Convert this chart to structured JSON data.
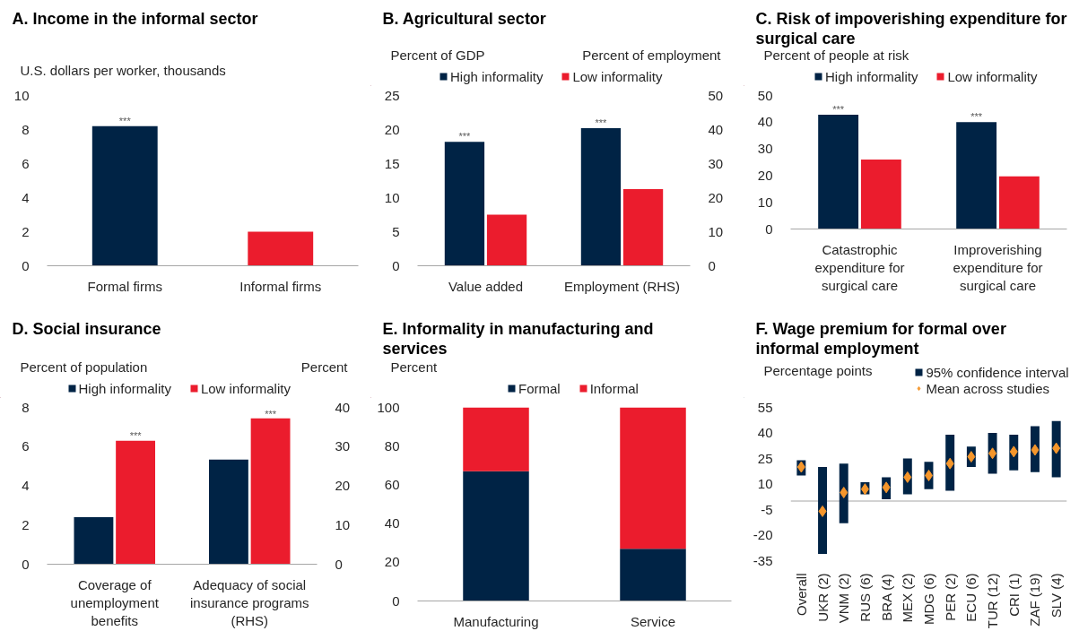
{
  "chart_data": [
    {
      "type": "bar",
      "title": "A. Income in the informal sector",
      "ylabel": "U.S. dollars per worker, thousands",
      "categories": [
        "Formal firms",
        "Informal firms"
      ],
      "values": [
        8.2,
        2.0
      ],
      "colors": [
        "#002345",
        "#eb1c2d"
      ],
      "ylim": [
        0,
        10
      ],
      "yticks": [
        0,
        2,
        4,
        6,
        8,
        10
      ],
      "annotations": [
        {
          "text": "***",
          "x": "Formal firms",
          "y": 8.2
        }
      ]
    },
    {
      "type": "bar",
      "title": "B. Agricultural sector",
      "ylabel": "Percent of GDP",
      "y2label": "Percent of employment",
      "categories": [
        "Value added",
        "Employment (RHS)"
      ],
      "series": [
        {
          "name": "High informality",
          "color": "#002345",
          "values": [
            18.2,
            null
          ]
        },
        {
          "name": "Low informality",
          "color": "#eb1c2d",
          "values": [
            7.5,
            null
          ]
        },
        {
          "color": "#002345",
          "values": [
            null,
            40.4
          ],
          "axis": "y2"
        },
        {
          "color": "#eb1c2d",
          "values": [
            null,
            22.5
          ],
          "axis": "y2"
        }
      ],
      "ylim": [
        0,
        25
      ],
      "yticks": [
        0,
        5,
        10,
        15,
        20,
        25
      ],
      "y2lim": [
        0,
        50
      ],
      "y2ticks": [
        0,
        10,
        20,
        30,
        40,
        50
      ],
      "legend": "top",
      "annotations": [
        {
          "text": "***",
          "x": "Value added",
          "y": 18.2
        },
        {
          "text": "***",
          "x": "Employment (RHS)",
          "y": 20.2
        }
      ]
    },
    {
      "type": "bar",
      "title": "C. Risk of impoverishing expenditure for surgical care",
      "ylabel": "Percent of people at risk",
      "categories": [
        "Catastrophic expenditure for surgical care",
        "Improverishing expenditure for surgical care"
      ],
      "series": [
        {
          "name": "High informality",
          "color": "#002345",
          "values": [
            42.8,
            40.0
          ]
        },
        {
          "name": "Low informality",
          "color": "#eb1c2d",
          "values": [
            26.0,
            19.7
          ]
        }
      ],
      "ylim": [
        0,
        50
      ],
      "yticks": [
        0,
        10,
        20,
        30,
        40,
        50
      ],
      "legend": "top",
      "annotations": [
        {
          "text": "***",
          "x": "Catastrophic expenditure for surgical care",
          "y": 42.8
        },
        {
          "text": "***",
          "x": "Improverishing expenditure for surgical care",
          "y": 40.0
        }
      ]
    },
    {
      "type": "bar",
      "title": "D. Social insurance",
      "ylabel": "Percent of population",
      "y2label": "Percent",
      "categories": [
        "Coverage of unemployment benefits",
        "Adequacy of social insurance programs (RHS)"
      ],
      "series": [
        {
          "name": "High informality",
          "color": "#002345",
          "values": [
            2.4,
            null
          ]
        },
        {
          "name": "Low informality",
          "color": "#eb1c2d",
          "values": [
            6.3,
            null
          ]
        },
        {
          "color": "#002345",
          "values": [
            null,
            26.7
          ],
          "axis": "y2"
        },
        {
          "color": "#eb1c2d",
          "values": [
            null,
            37.2
          ],
          "axis": "y2"
        }
      ],
      "ylim": [
        0,
        8
      ],
      "yticks": [
        0,
        2,
        4,
        6,
        8
      ],
      "y2lim": [
        0,
        40
      ],
      "y2ticks": [
        0,
        10,
        20,
        30,
        40
      ],
      "legend": "top",
      "annotations": [
        {
          "text": "***",
          "x": "Coverage of unemployment benefits",
          "y": 6.3
        },
        {
          "text": "***",
          "x": "Adequacy of social insurance programs (RHS)",
          "y": 7.4
        }
      ]
    },
    {
      "type": "bar",
      "stacked": true,
      "title": "E. Informality in manufacturing and services",
      "ylabel": "Percent",
      "categories": [
        "Manufacturing",
        "Service"
      ],
      "series": [
        {
          "name": "Formal",
          "color": "#002345",
          "values": [
            67,
            27
          ]
        },
        {
          "name": "Informal",
          "color": "#eb1c2d",
          "values": [
            33,
            73
          ]
        }
      ],
      "ylim": [
        0,
        100
      ],
      "yticks": [
        0,
        20,
        40,
        60,
        80,
        100
      ],
      "legend": "top"
    },
    {
      "type": "bar",
      "title": "F. Wage premium for formal over informal employment",
      "ylabel": "Percentage points",
      "categories": [
        "Overall",
        "UKR (2)",
        "VNM (2)",
        "RUS (6)",
        "BRA (4)",
        "MEX (2)",
        "MDG (6)",
        "PER (2)",
        "ECU (6)",
        "TUR (12)",
        "CRI (1)",
        "ZAF (19)",
        "SLV (4)"
      ],
      "series": [
        {
          "name": "95% confidence interval",
          "color": "#002345",
          "base": [
            15,
            -31,
            -13,
            4,
            1,
            4,
            7,
            6,
            20,
            16,
            18,
            17,
            14
          ],
          "values": [
            9,
            51,
            35,
            7,
            13,
            21,
            16,
            33,
            12,
            24,
            21,
            27,
            33
          ]
        },
        {
          "name": "Mean across studies",
          "type": "scatter",
          "marker": "diamond",
          "color": "#f5962b",
          "x": [
            "Overall",
            "UKR (2)",
            "VNM (2)",
            "RUS (6)",
            "BRA (4)",
            "MEX (2)",
            "MDG (6)",
            "PER (2)",
            "ECU (6)",
            "TUR (12)",
            "CRI (1)",
            "ZAF (19)",
            "SLV (4)"
          ],
          "values": [
            20,
            -6,
            5,
            7,
            8,
            14,
            15,
            22,
            26,
            28,
            29,
            30,
            31
          ]
        }
      ],
      "ylim": [
        -35,
        55
      ],
      "yticks": [
        -35,
        -20,
        -5,
        10,
        25,
        40,
        55
      ],
      "ref_lines": [
        {
          "axis": "y",
          "value": 0,
          "color": "#a6a6a6"
        }
      ],
      "legend": "top right"
    }
  ]
}
